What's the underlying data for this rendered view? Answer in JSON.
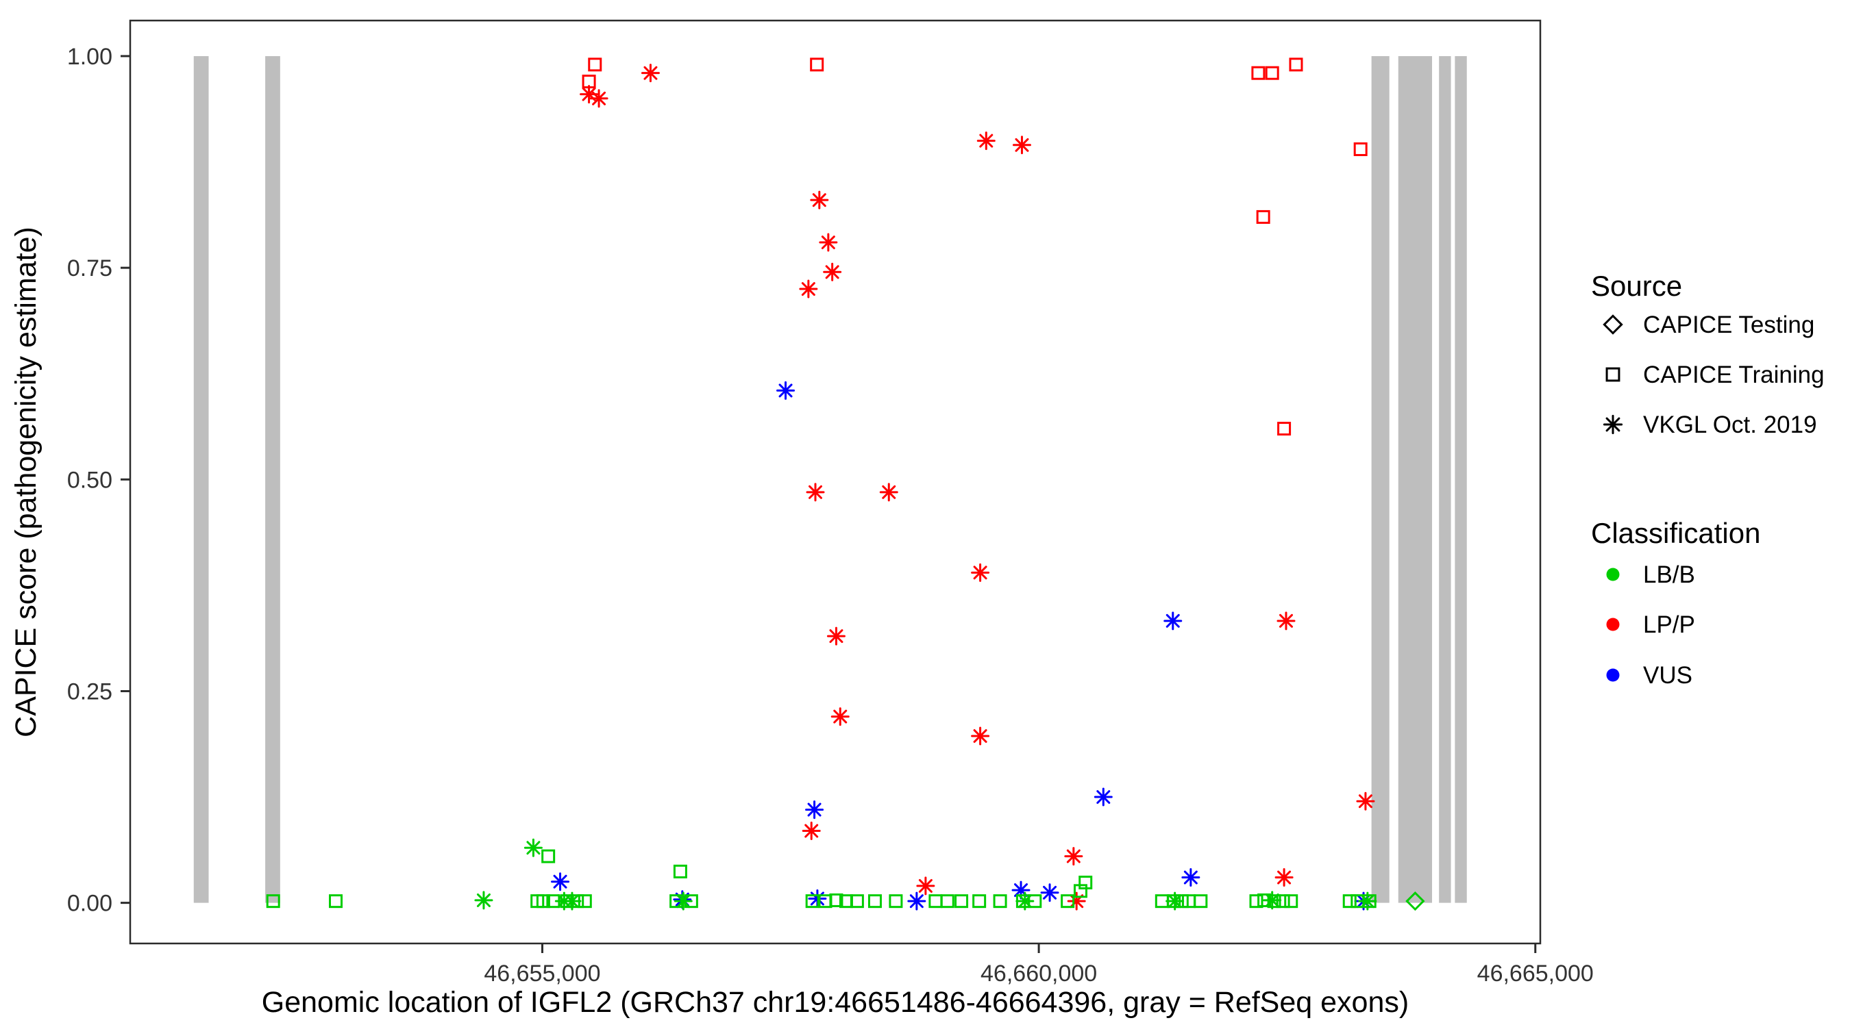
{
  "figure": {
    "x_axis_title": "Genomic location of IGFL2 (GRCh37 chr19:46651486-46664396, gray = RefSeq exons)",
    "y_axis_title": "CAPICE score (pathogenicity estimate)"
  },
  "legend": {
    "source_title": "Source",
    "source_items": [
      {
        "key": "testing",
        "label": "CAPICE Testing",
        "shape": "diamond"
      },
      {
        "key": "training",
        "label": "CAPICE Training",
        "shape": "square"
      },
      {
        "key": "vkgl",
        "label": "VKGL Oct. 2019",
        "shape": "asterisk"
      }
    ],
    "classification_title": "Classification",
    "classification_items": [
      {
        "key": "LB/B",
        "label": "LB/B",
        "color": "#00CD00"
      },
      {
        "key": "LP/P",
        "label": "LP/P",
        "color": "#FF0000"
      },
      {
        "key": "VUS",
        "label": "VUS",
        "color": "#0000FF"
      }
    ]
  },
  "chart_data": {
    "type": "scatter",
    "title": "",
    "xlabel": "Genomic location of IGFL2 (GRCh37 chr19:46651486-46664396, gray = RefSeq exons)",
    "ylabel": "CAPICE score (pathogenicity estimate)",
    "x_domain": [
      46650850,
      46665050
    ],
    "y_domain": [
      -0.048,
      1.042
    ],
    "x_ticks": [
      {
        "value": 46655000,
        "label": "46,655,000"
      },
      {
        "value": 46660000,
        "label": "46,660,000"
      },
      {
        "value": 46665000,
        "label": "46,665,000"
      }
    ],
    "y_ticks": [
      {
        "value": 0,
        "label": "0.00"
      },
      {
        "value": 0.25,
        "label": "0.25"
      },
      {
        "value": 0.5,
        "label": "0.50"
      },
      {
        "value": 0.75,
        "label": "0.75"
      },
      {
        "value": 1.0,
        "label": "1.00"
      }
    ],
    "exon_color": "#BEBEBE",
    "exons": [
      [
        46651490,
        46651640
      ],
      [
        46652210,
        46652360
      ],
      [
        46663350,
        46663530
      ],
      [
        46663620,
        46663960
      ],
      [
        46664030,
        46664150
      ],
      [
        46664190,
        46664310
      ]
    ],
    "marker_shapes": {
      "testing": "diamond",
      "training": "square",
      "vkgl": "asterisk"
    },
    "class_colors": {
      "LB/B": "#00CD00",
      "LP/P": "#FF0000",
      "VUS": "#0000FF"
    },
    "points": [
      [
        46655470,
        0.97,
        "LP/P",
        "training"
      ],
      [
        46655530,
        0.99,
        "LP/P",
        "training"
      ],
      [
        46657765,
        0.99,
        "LP/P",
        "training"
      ],
      [
        46662210,
        0.98,
        "LP/P",
        "training"
      ],
      [
        46662350,
        0.98,
        "LP/P",
        "training"
      ],
      [
        46662590,
        0.99,
        "LP/P",
        "training"
      ],
      [
        46662260,
        0.81,
        "LP/P",
        "training"
      ],
      [
        46662470,
        0.56,
        "LP/P",
        "training"
      ],
      [
        46663240,
        0.89,
        "LP/P",
        "training"
      ],
      [
        46655470,
        0.955,
        "LP/P",
        "vkgl"
      ],
      [
        46655570,
        0.95,
        "LP/P",
        "vkgl"
      ],
      [
        46656090,
        0.98,
        "LP/P",
        "vkgl"
      ],
      [
        46659470,
        0.9,
        "LP/P",
        "vkgl"
      ],
      [
        46659830,
        0.895,
        "LP/P",
        "vkgl"
      ],
      [
        46657790,
        0.83,
        "LP/P",
        "vkgl"
      ],
      [
        46657880,
        0.78,
        "LP/P",
        "vkgl"
      ],
      [
        46657920,
        0.745,
        "LP/P",
        "vkgl"
      ],
      [
        46657680,
        0.725,
        "LP/P",
        "vkgl"
      ],
      [
        46657750,
        0.485,
        "LP/P",
        "vkgl"
      ],
      [
        46658490,
        0.485,
        "LP/P",
        "vkgl"
      ],
      [
        46659410,
        0.39,
        "LP/P",
        "vkgl"
      ],
      [
        46662490,
        0.333,
        "LP/P",
        "vkgl"
      ],
      [
        46657960,
        0.315,
        "LP/P",
        "vkgl"
      ],
      [
        46658000,
        0.22,
        "LP/P",
        "vkgl"
      ],
      [
        46659410,
        0.197,
        "LP/P",
        "vkgl"
      ],
      [
        46663290,
        0.12,
        "LP/P",
        "vkgl"
      ],
      [
        46657710,
        0.085,
        "LP/P",
        "vkgl"
      ],
      [
        46660350,
        0.055,
        "LP/P",
        "vkgl"
      ],
      [
        46662470,
        0.03,
        "LP/P",
        "vkgl"
      ],
      [
        46658860,
        0.02,
        "LP/P",
        "vkgl"
      ],
      [
        46660380,
        0.002,
        "LP/P",
        "vkgl"
      ],
      [
        46657450,
        0.605,
        "VUS",
        "vkgl"
      ],
      [
        46661350,
        0.333,
        "VUS",
        "vkgl"
      ],
      [
        46660650,
        0.125,
        "VUS",
        "vkgl"
      ],
      [
        46657740,
        0.11,
        "VUS",
        "vkgl"
      ],
      [
        46661530,
        0.03,
        "VUS",
        "vkgl"
      ],
      [
        46655180,
        0.025,
        "VUS",
        "vkgl"
      ],
      [
        46659820,
        0.015,
        "VUS",
        "vkgl"
      ],
      [
        46660110,
        0.012,
        "VUS",
        "vkgl"
      ],
      [
        46657770,
        0.005,
        "VUS",
        "vkgl"
      ],
      [
        46656410,
        0.004,
        "VUS",
        "vkgl"
      ],
      [
        46658770,
        0.002,
        "VUS",
        "vkgl"
      ],
      [
        46663270,
        0.002,
        "VUS",
        "vkgl"
      ],
      [
        46654910,
        0.065,
        "LB/B",
        "vkgl"
      ],
      [
        46654410,
        0.003,
        "LB/B",
        "vkgl"
      ],
      [
        46655220,
        0.002,
        "LB/B",
        "vkgl"
      ],
      [
        46655300,
        0.002,
        "LB/B",
        "vkgl"
      ],
      [
        46656420,
        0.002,
        "LB/B",
        "vkgl"
      ],
      [
        46659860,
        0.002,
        "LB/B",
        "vkgl"
      ],
      [
        46661370,
        0.002,
        "LB/B",
        "vkgl"
      ],
      [
        46662350,
        0.003,
        "LB/B",
        "vkgl"
      ],
      [
        46663310,
        0.002,
        "LB/B",
        "vkgl"
      ],
      [
        46655060,
        0.055,
        "LB/B",
        "training"
      ],
      [
        46656390,
        0.037,
        "LB/B",
        "training"
      ],
      [
        46660470,
        0.024,
        "LB/B",
        "training"
      ],
      [
        46660420,
        0.014,
        "LB/B",
        "training"
      ],
      [
        46652290,
        0.002,
        "LB/B",
        "training"
      ],
      [
        46652920,
        0.002,
        "LB/B",
        "training"
      ],
      [
        46654950,
        0.002,
        "LB/B",
        "training"
      ],
      [
        46655010,
        0.002,
        "LB/B",
        "training"
      ],
      [
        46655110,
        0.002,
        "LB/B",
        "training"
      ],
      [
        46655250,
        0.002,
        "LB/B",
        "training"
      ],
      [
        46655350,
        0.002,
        "LB/B",
        "training"
      ],
      [
        46655430,
        0.002,
        "LB/B",
        "training"
      ],
      [
        46656350,
        0.002,
        "LB/B",
        "training"
      ],
      [
        46656500,
        0.002,
        "LB/B",
        "training"
      ],
      [
        46657720,
        0.002,
        "LB/B",
        "training"
      ],
      [
        46657850,
        0.002,
        "LB/B",
        "training"
      ],
      [
        46657960,
        0.003,
        "LB/B",
        "training"
      ],
      [
        46658060,
        0.002,
        "LB/B",
        "training"
      ],
      [
        46658170,
        0.002,
        "LB/B",
        "training"
      ],
      [
        46658350,
        0.002,
        "LB/B",
        "training"
      ],
      [
        46658560,
        0.002,
        "LB/B",
        "training"
      ],
      [
        46658960,
        0.002,
        "LB/B",
        "training"
      ],
      [
        46659080,
        0.002,
        "LB/B",
        "training"
      ],
      [
        46659220,
        0.002,
        "LB/B",
        "training"
      ],
      [
        46659400,
        0.002,
        "LB/B",
        "training"
      ],
      [
        46659610,
        0.002,
        "LB/B",
        "training"
      ],
      [
        46659840,
        0.002,
        "LB/B",
        "training"
      ],
      [
        46659960,
        0.002,
        "LB/B",
        "training"
      ],
      [
        46660290,
        0.002,
        "LB/B",
        "training"
      ],
      [
        46661240,
        0.002,
        "LB/B",
        "training"
      ],
      [
        46661360,
        0.002,
        "LB/B",
        "training"
      ],
      [
        46661440,
        0.002,
        "LB/B",
        "training"
      ],
      [
        46661510,
        0.002,
        "LB/B",
        "training"
      ],
      [
        46661630,
        0.002,
        "LB/B",
        "training"
      ],
      [
        46662190,
        0.002,
        "LB/B",
        "training"
      ],
      [
        46662270,
        0.003,
        "LB/B",
        "training"
      ],
      [
        46662370,
        0.002,
        "LB/B",
        "training"
      ],
      [
        46662460,
        0.002,
        "LB/B",
        "training"
      ],
      [
        46662540,
        0.002,
        "LB/B",
        "training"
      ],
      [
        46663130,
        0.002,
        "LB/B",
        "training"
      ],
      [
        46663210,
        0.002,
        "LB/B",
        "training"
      ],
      [
        46663330,
        0.002,
        "LB/B",
        "training"
      ],
      [
        46663790,
        0.002,
        "LB/B",
        "testing"
      ]
    ]
  }
}
